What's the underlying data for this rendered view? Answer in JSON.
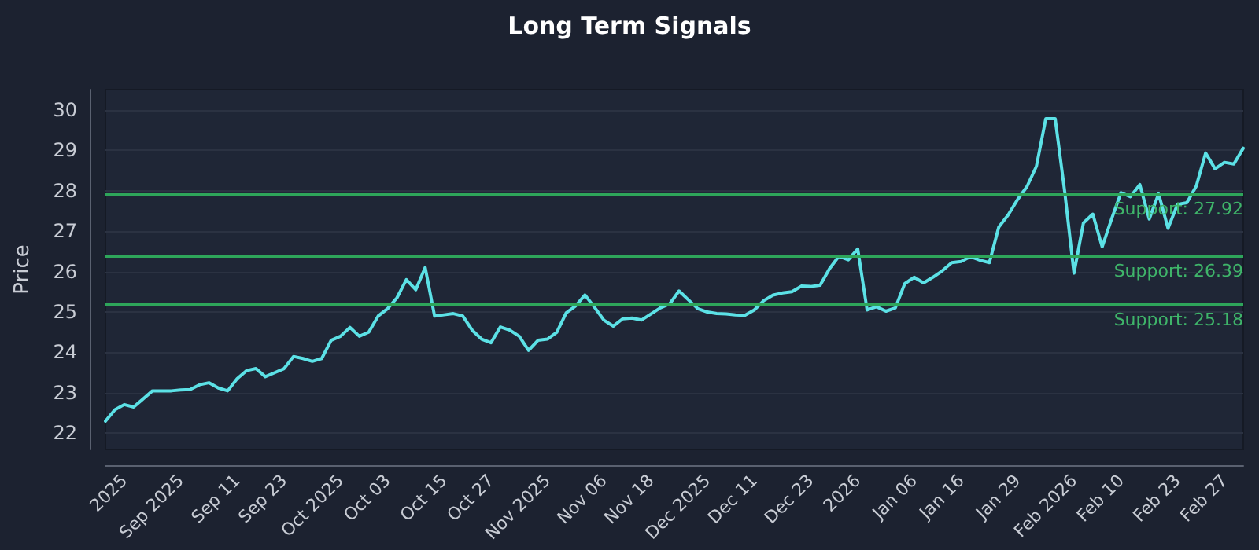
{
  "chart_data": {
    "type": "line",
    "title": "Long Term Signals",
    "ylabel": "Price",
    "categories": [
      null,
      null,
      "2025",
      null,
      null,
      null,
      null,
      null,
      "Sep 2025",
      null,
      null,
      null,
      null,
      null,
      "Sep 11",
      null,
      null,
      null,
      null,
      "Sep 23",
      null,
      null,
      null,
      null,
      null,
      "Oct 2025",
      null,
      null,
      null,
      null,
      "Oct 03",
      null,
      null,
      null,
      null,
      null,
      "Oct 15",
      null,
      null,
      null,
      null,
      "Oct 27",
      null,
      null,
      null,
      null,
      null,
      "Nov 2025",
      null,
      null,
      null,
      null,
      null,
      "Nov 06",
      null,
      null,
      null,
      null,
      "Nov 18",
      null,
      null,
      null,
      null,
      null,
      "Dec 2025",
      null,
      null,
      null,
      null,
      "Dec 11",
      null,
      null,
      null,
      null,
      null,
      "Dec 23",
      null,
      null,
      null,
      null,
      "2026",
      null,
      null,
      null,
      null,
      null,
      "Jan 06",
      null,
      null,
      null,
      null,
      "Jan 16",
      null,
      null,
      null,
      null,
      null,
      "Jan 29",
      null,
      null,
      null,
      null,
      null,
      "Feb 2026",
      null,
      null,
      null,
      null,
      "Feb 10",
      null,
      null,
      null,
      null,
      null,
      "Feb 23",
      null,
      null,
      null,
      null,
      "Feb 27",
      null,
      null
    ],
    "series": [
      {
        "color": "#5ce1e6",
        "values": [
          22.3,
          22.58,
          22.71,
          22.65,
          22.85,
          23.05,
          23.05,
          23.05,
          23.07,
          23.08,
          23.2,
          23.25,
          23.12,
          23.05,
          23.35,
          23.55,
          23.6,
          23.4,
          23.5,
          23.6,
          23.9,
          23.85,
          23.78,
          23.85,
          24.3,
          24.4,
          24.62,
          24.4,
          24.5,
          24.9,
          25.08,
          25.35,
          25.8,
          25.55,
          26.1,
          24.9,
          24.93,
          24.96,
          24.9,
          24.55,
          24.33,
          24.24,
          24.63,
          24.55,
          24.4,
          24.05,
          24.3,
          24.33,
          24.5,
          24.98,
          25.15,
          25.42,
          25.12,
          24.8,
          24.65,
          24.83,
          24.85,
          24.8,
          24.95,
          25.1,
          25.2,
          25.52,
          25.3,
          25.08,
          25.0,
          24.96,
          24.95,
          24.93,
          24.92,
          25.05,
          25.28,
          25.42,
          25.47,
          25.5,
          25.64,
          25.63,
          25.66,
          26.07,
          26.38,
          26.29,
          26.56,
          25.05,
          25.13,
          25.02,
          25.1,
          25.7,
          25.86,
          25.72,
          25.86,
          26.02,
          26.22,
          26.25,
          26.37,
          26.28,
          26.22,
          27.1,
          27.4,
          27.78,
          28.1,
          28.6,
          29.78,
          29.78,
          28.0,
          25.96,
          27.2,
          27.42,
          26.61,
          27.3,
          27.95,
          27.85,
          28.15,
          27.3,
          27.92,
          27.07,
          27.66,
          27.7,
          28.11,
          28.93,
          28.54,
          28.7,
          28.66,
          29.05
        ]
      }
    ],
    "ylim": [
      21.6,
      30.5
    ],
    "yticks": [
      22,
      23,
      24,
      25,
      26,
      27,
      28,
      29,
      30
    ],
    "grid": "y",
    "marker": "none",
    "line_style": "solid",
    "ref_lines": [
      {
        "axis": "y",
        "value": 27.92,
        "label": "Support: 27.92",
        "color": "#2ea55a"
      },
      {
        "axis": "y",
        "value": 26.39,
        "label": "Support: 26.39",
        "color": "#2ea55a"
      },
      {
        "axis": "y",
        "value": 25.18,
        "label": "Support: 25.18",
        "color": "#2ea55a"
      }
    ]
  }
}
